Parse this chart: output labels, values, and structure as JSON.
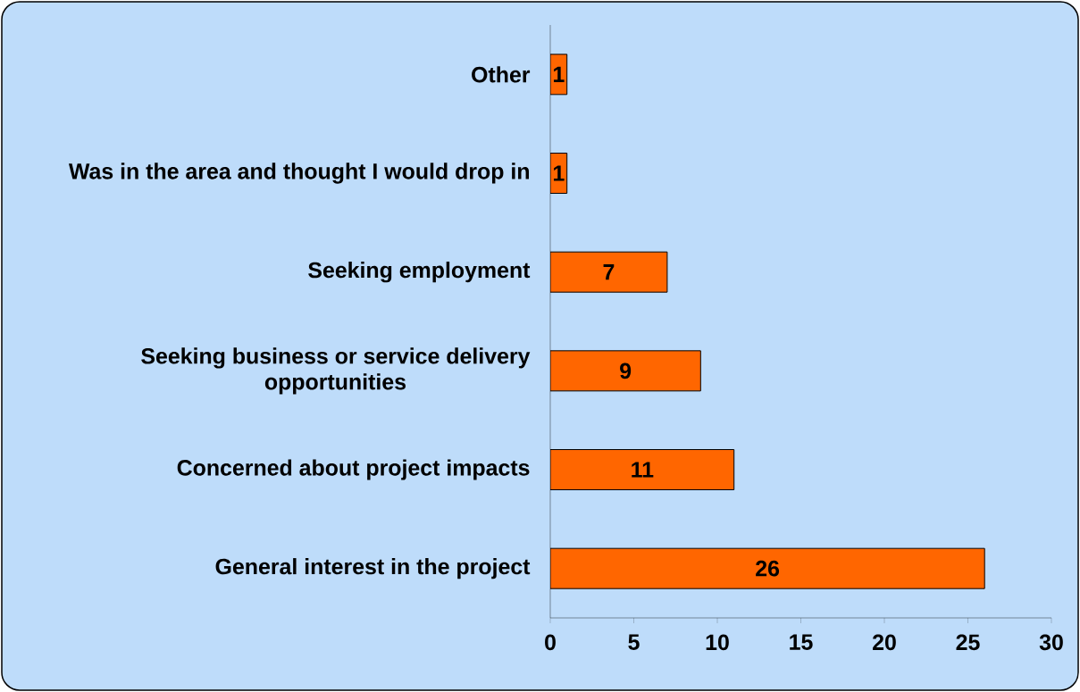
{
  "chart_data": {
    "type": "bar",
    "orientation": "horizontal",
    "categories": [
      "Other",
      "Was in the area and thought I would drop in",
      "Seeking employment",
      "Seeking business or service delivery opportunities",
      "Concerned about project impacts",
      "General interest in the project"
    ],
    "values": [
      1,
      1,
      7,
      9,
      11,
      26
    ],
    "color": "#ff6600",
    "xlim": [
      0,
      30
    ],
    "xticks": [
      0,
      5,
      10,
      15,
      20,
      25,
      30
    ],
    "data_labels": true
  }
}
